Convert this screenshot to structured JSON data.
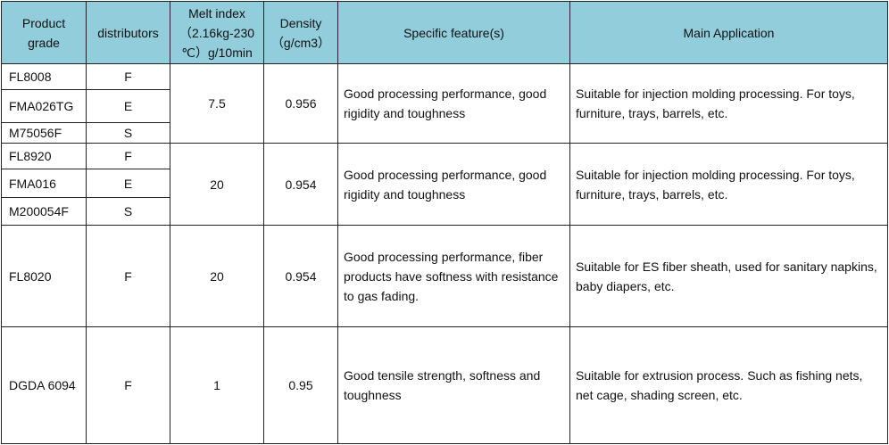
{
  "headers": {
    "grade": "Product grade",
    "distributors": "distributors",
    "melt": "Melt index （2.16kg-230 ℃）g/10min",
    "density": "Density （g/cm3）",
    "feature": "Specific feature(s)",
    "application": "Main Application"
  },
  "groups": [
    {
      "rows": [
        {
          "grade": "FL8008",
          "dist": "F"
        },
        {
          "grade": "FMA026TG",
          "dist": "E"
        },
        {
          "grade": "M75056F",
          "dist": "S"
        }
      ],
      "melt": "7.5",
      "density": "0.956",
      "feature": "Good processing performance, good rigidity and toughness",
      "application": "Suitable for injection molding processing. For toys, furniture, trays, barrels, etc."
    },
    {
      "rows": [
        {
          "grade": "FL8920",
          "dist": "F"
        },
        {
          "grade": "FMA016",
          "dist": "E"
        },
        {
          "grade": "M200054F",
          "dist": "S"
        }
      ],
      "melt": "20",
      "density": "0.954",
      "feature": "Good processing performance, good rigidity and toughness",
      "application": "Suitable for injection molding processing. For toys, furniture, trays, barrels, etc."
    },
    {
      "rows": [
        {
          "grade": "FL8020",
          "dist": "F"
        }
      ],
      "melt": "20",
      "density": "0.954",
      "feature": "Good processing performance, fiber products have softness with resistance to gas fading.",
      "application": "Suitable for ES fiber sheath, used for sanitary napkins, baby diapers, etc."
    },
    {
      "rows": [
        {
          "grade": "DGDA 6094",
          "dist": "F"
        }
      ],
      "melt": "1",
      "density": "0.95",
      "feature": "Good tensile strength, softness and toughness",
      "application": "Suitable for extrusion process. Such as fishing nets, net cage, shading screen, etc."
    }
  ]
}
